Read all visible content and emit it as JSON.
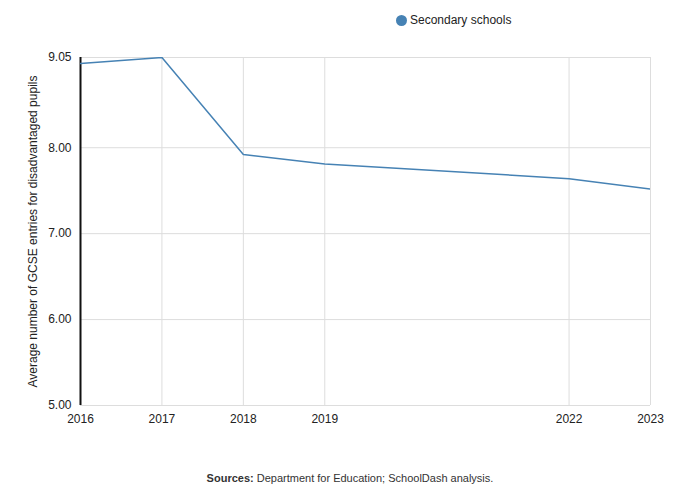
{
  "chart_data": {
    "type": "line",
    "y_label": "Average number of GCSE entries for disadvantaged pupils",
    "caption": "Sources: Department for Education; SchoolDash analysis.",
    "x": [
      2016,
      2017,
      2018,
      2019,
      2022,
      2023
    ],
    "series": [
      {
        "name": "Secondary schools",
        "color": "#4682b4",
        "values": [
          8.98,
          9.05,
          7.92,
          7.81,
          7.64,
          7.52
        ]
      }
    ],
    "xlim": [
      2016,
      2023
    ],
    "xticks": [
      2016,
      2017,
      2018,
      2019,
      2022,
      2023
    ],
    "ylim": [
      5,
      9.05
    ],
    "yticks": [
      {
        "value": 5,
        "label": "5.00"
      },
      {
        "value": 6,
        "label": "6.00"
      },
      {
        "value": 7,
        "label": "7.00"
      },
      {
        "value": 8,
        "label": "8.00"
      },
      9.05
    ],
    "grid": true,
    "legend": "top",
    "marker": "circle"
  }
}
